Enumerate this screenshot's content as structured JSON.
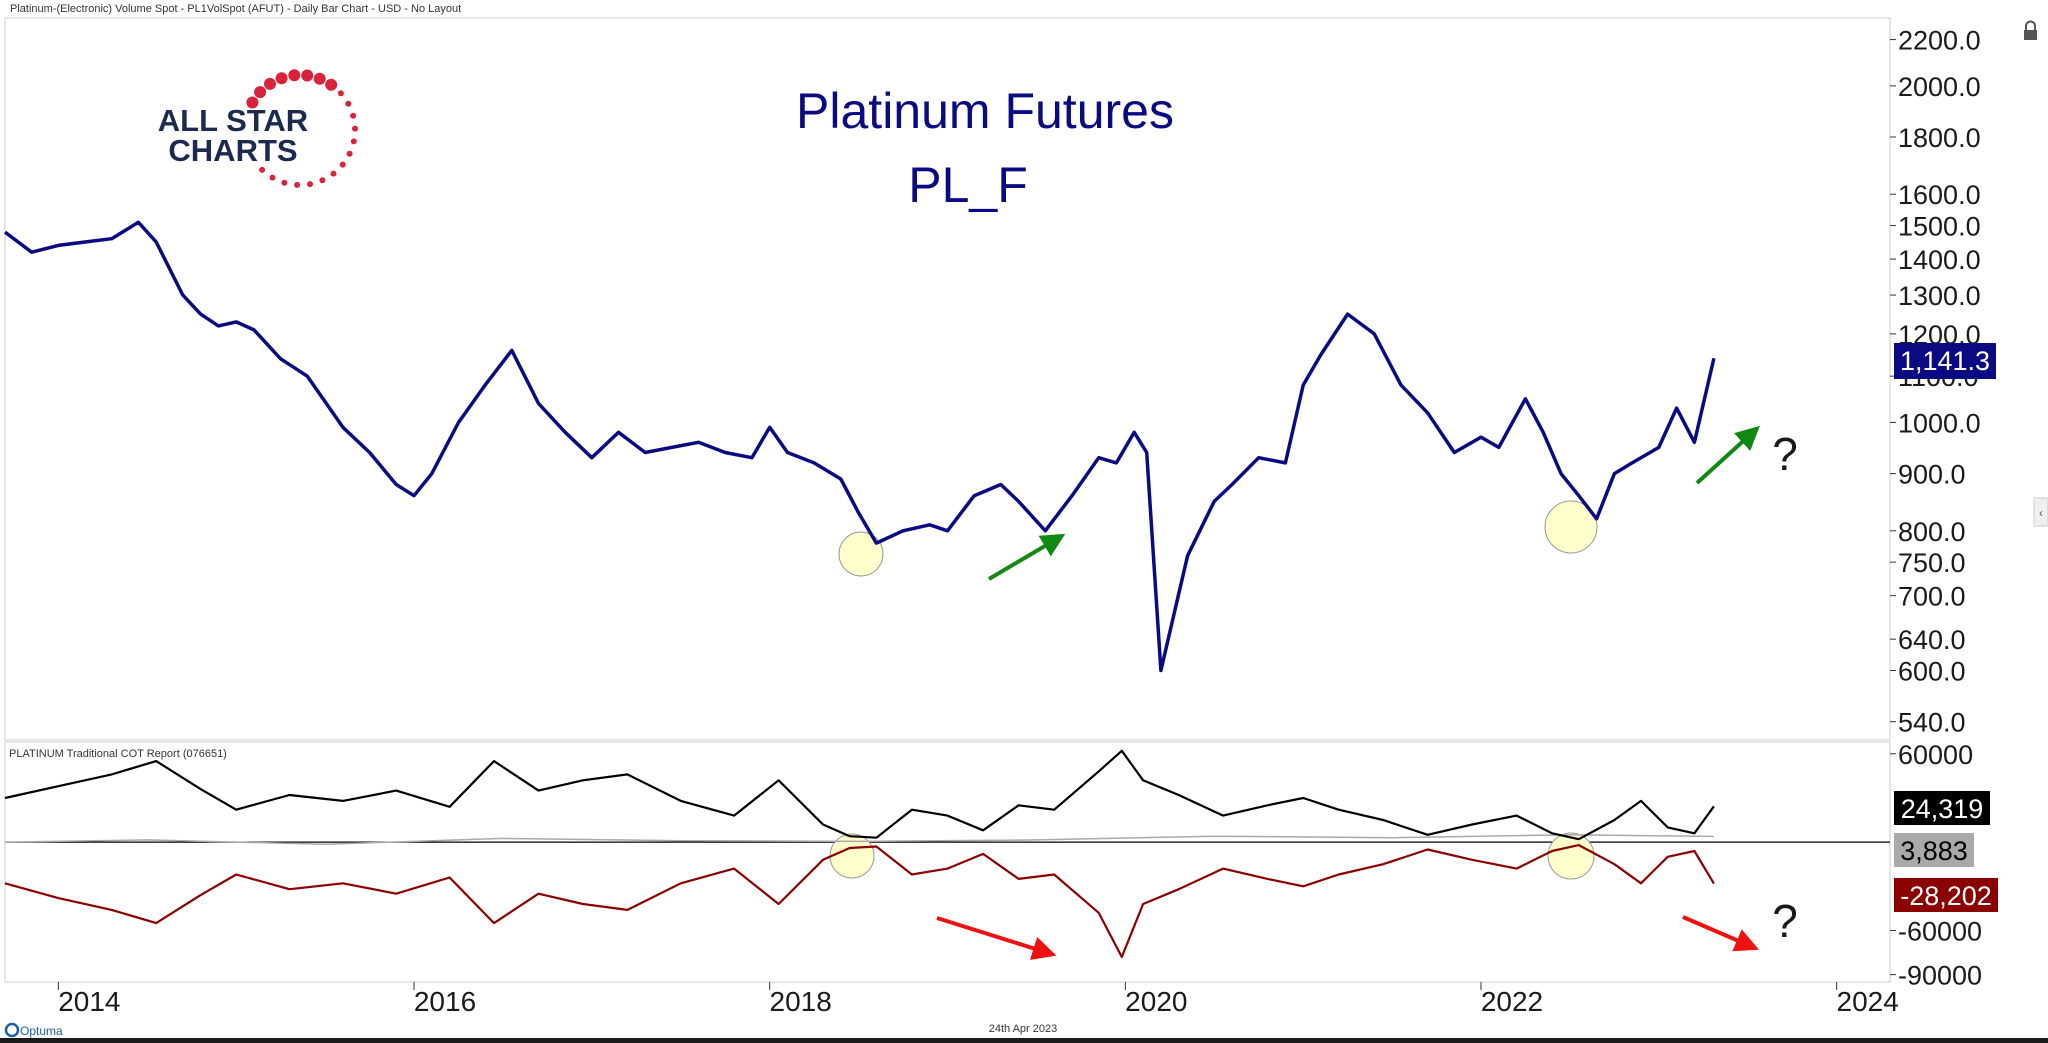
{
  "header": {
    "description": "Platinum-(Electronic) Volume Spot - PL1VolSpot (AFUT) - Daily Bar Chart - USD - No Layout"
  },
  "logo": {
    "line1": "ALL STAR",
    "line2": "CHARTS"
  },
  "footer": {
    "brand": "Optuma",
    "date": "24th Apr 2023"
  },
  "colors": {
    "price": "#0a0a82",
    "commercials": "#000000",
    "large_specs": "#8b0000",
    "small_specs": "#a9a9a9",
    "up_arrow": "#118811",
    "down_arrow": "#ee1111",
    "highlight": "#ffffcc"
  },
  "chart_data": [
    {
      "type": "line",
      "title": "Platinum Futures",
      "subtitle": "PL_F",
      "scale": "log",
      "ylim": [
        520,
        2300
      ],
      "y_ticks": [
        "2200.0",
        "2000.0",
        "1800.0",
        "1600.0",
        "1500.0",
        "1400.0",
        "1300.0",
        "1200.0",
        "1100.0",
        "1000.0",
        "900.0",
        "800.0",
        "750.0",
        "700.0",
        "640.0",
        "600.0",
        "540.0"
      ],
      "last_value_label": "1,141.3",
      "series": [
        {
          "x": [
            2013.7,
            2013.85,
            2014.0,
            2014.15,
            2014.3,
            2014.45,
            2014.55,
            2014.7,
            2014.8,
            2014.9,
            2015.0,
            2015.1,
            2015.25,
            2015.4,
            2015.6,
            2015.75,
            2015.9,
            2016.0,
            2016.1,
            2016.25,
            2016.4,
            2016.55,
            2016.7,
            2016.85,
            2017.0,
            2017.15,
            2017.3,
            2017.45,
            2017.6,
            2017.75,
            2017.9,
            2018.0,
            2018.1,
            2018.25,
            2018.4,
            2018.5,
            2018.6,
            2018.75,
            2018.9,
            2019.0,
            2019.15,
            2019.3,
            2019.4,
            2019.55,
            2019.7,
            2019.85,
            2019.95,
            2020.05,
            2020.12,
            2020.2,
            2020.35,
            2020.5,
            2020.6,
            2020.75,
            2020.9,
            2021.0,
            2021.1,
            2021.25,
            2021.4,
            2021.55,
            2021.7,
            2021.85,
            2022.0,
            2022.1,
            2022.25,
            2022.35,
            2022.45,
            2022.55,
            2022.65,
            2022.75,
            2022.85,
            2023.0,
            2023.1,
            2023.2,
            2023.31
          ],
          "y": [
            1480,
            1420,
            1440,
            1450,
            1460,
            1510,
            1450,
            1300,
            1250,
            1220,
            1230,
            1210,
            1140,
            1100,
            990,
            940,
            880,
            860,
            900,
            1000,
            1080,
            1160,
            1040,
            980,
            930,
            980,
            940,
            950,
            960,
            940,
            930,
            990,
            940,
            920,
            890,
            830,
            780,
            800,
            810,
            800,
            860,
            880,
            850,
            800,
            860,
            930,
            920,
            980,
            940,
            600,
            760,
            850,
            880,
            930,
            920,
            1080,
            1150,
            1250,
            1200,
            1080,
            1020,
            940,
            970,
            950,
            1050,
            980,
            900,
            860,
            820,
            900,
            920,
            950,
            1030,
            960,
            1141.3
          ]
        }
      ]
    },
    {
      "type": "line",
      "title": "PLATINUM Traditional COT Report (076651)",
      "y_ticks": [
        "60000",
        "-60000",
        "-90000"
      ],
      "ylim": [
        -95000,
        68000
      ],
      "series": [
        {
          "name": "commercials",
          "last_label": "24,319",
          "x": [
            2013.7,
            2014.0,
            2014.3,
            2014.55,
            2014.8,
            2015.0,
            2015.3,
            2015.6,
            2015.9,
            2016.2,
            2016.45,
            2016.7,
            2016.95,
            2017.2,
            2017.5,
            2017.8,
            2018.05,
            2018.3,
            2018.45,
            2018.6,
            2018.8,
            2019.0,
            2019.2,
            2019.4,
            2019.6,
            2019.85,
            2019.98,
            2020.1,
            2020.3,
            2020.55,
            2020.8,
            2021.0,
            2021.2,
            2021.45,
            2021.7,
            2021.95,
            2022.2,
            2022.4,
            2022.55,
            2022.75,
            2022.9,
            2023.05,
            2023.2,
            2023.31
          ],
          "y": [
            30000,
            38000,
            46000,
            55000,
            36000,
            22000,
            32000,
            28000,
            35000,
            24000,
            55000,
            35000,
            42000,
            46000,
            28000,
            18000,
            42000,
            12000,
            4000,
            3000,
            22000,
            18000,
            8000,
            25000,
            22000,
            48000,
            62000,
            42000,
            32000,
            18000,
            25000,
            30000,
            22000,
            15000,
            5000,
            12000,
            18000,
            6000,
            2000,
            15000,
            28000,
            10000,
            6000,
            24319
          ]
        },
        {
          "name": "small_specs",
          "last_label": "3,883",
          "x": [
            2013.7,
            2014.5,
            2015.5,
            2016.5,
            2017.5,
            2018.5,
            2019.5,
            2020.5,
            2021.5,
            2022.5,
            2023.31
          ],
          "y": [
            0,
            1500,
            -1500,
            2500,
            1000,
            500,
            1500,
            4000,
            3000,
            5000,
            3883
          ]
        },
        {
          "name": "large_specs",
          "last_label": "-28,202",
          "x": [
            2013.7,
            2014.0,
            2014.3,
            2014.55,
            2014.8,
            2015.0,
            2015.3,
            2015.6,
            2015.9,
            2016.2,
            2016.45,
            2016.7,
            2016.95,
            2017.2,
            2017.5,
            2017.8,
            2018.05,
            2018.3,
            2018.45,
            2018.6,
            2018.8,
            2019.0,
            2019.2,
            2019.4,
            2019.6,
            2019.85,
            2019.98,
            2020.1,
            2020.3,
            2020.55,
            2020.8,
            2021.0,
            2021.2,
            2021.45,
            2021.7,
            2021.95,
            2022.2,
            2022.4,
            2022.55,
            2022.75,
            2022.9,
            2023.05,
            2023.2,
            2023.31
          ],
          "y": [
            -28000,
            -38000,
            -46000,
            -55000,
            -36000,
            -22000,
            -32000,
            -28000,
            -35000,
            -24000,
            -55000,
            -35000,
            -42000,
            -46000,
            -28000,
            -18000,
            -42000,
            -12000,
            -4000,
            -3000,
            -22000,
            -18000,
            -8000,
            -25000,
            -22000,
            -48000,
            -78000,
            -42000,
            -32000,
            -18000,
            -25000,
            -30000,
            -22000,
            -15000,
            -5000,
            -12000,
            -18000,
            -6000,
            -2000,
            -15000,
            -28000,
            -10000,
            -6000,
            -28202
          ]
        }
      ]
    }
  ],
  "x_axis": {
    "ticks": [
      2014,
      2016,
      2018,
      2020,
      2022,
      2024
    ],
    "labels": [
      "2014",
      "2016",
      "2018",
      "2020",
      "2022",
      "2024"
    ],
    "range": [
      2013.7,
      2024.3
    ]
  },
  "annotations": {
    "question_mark": "?"
  }
}
